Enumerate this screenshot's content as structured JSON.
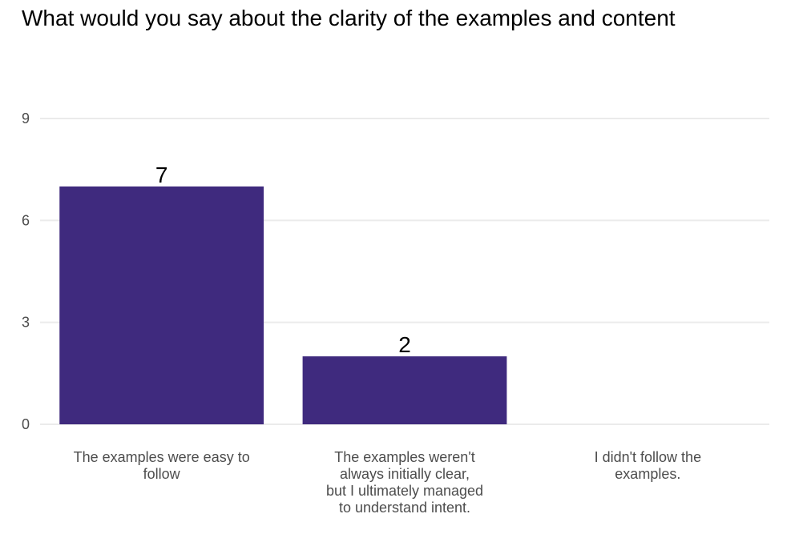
{
  "chart_data": {
    "type": "bar",
    "title": "What would you say about the clarity of the examples and content",
    "xlabel": "",
    "ylabel": "",
    "categories": [
      [
        "The examples were easy to",
        "follow"
      ],
      [
        "The examples weren't",
        "always initially clear,",
        "but I ultimately managed",
        "to understand intent."
      ],
      [
        "I didn't follow the",
        "examples."
      ]
    ],
    "values": [
      7,
      2,
      0
    ],
    "data_labels": [
      "7",
      "2",
      ""
    ],
    "ylim": [
      0,
      9
    ],
    "yticks": [
      0,
      3,
      6,
      9
    ],
    "grid": true,
    "legend": "none",
    "bar_color": "#3f2a7e",
    "grid_color": "#ebebeb"
  }
}
